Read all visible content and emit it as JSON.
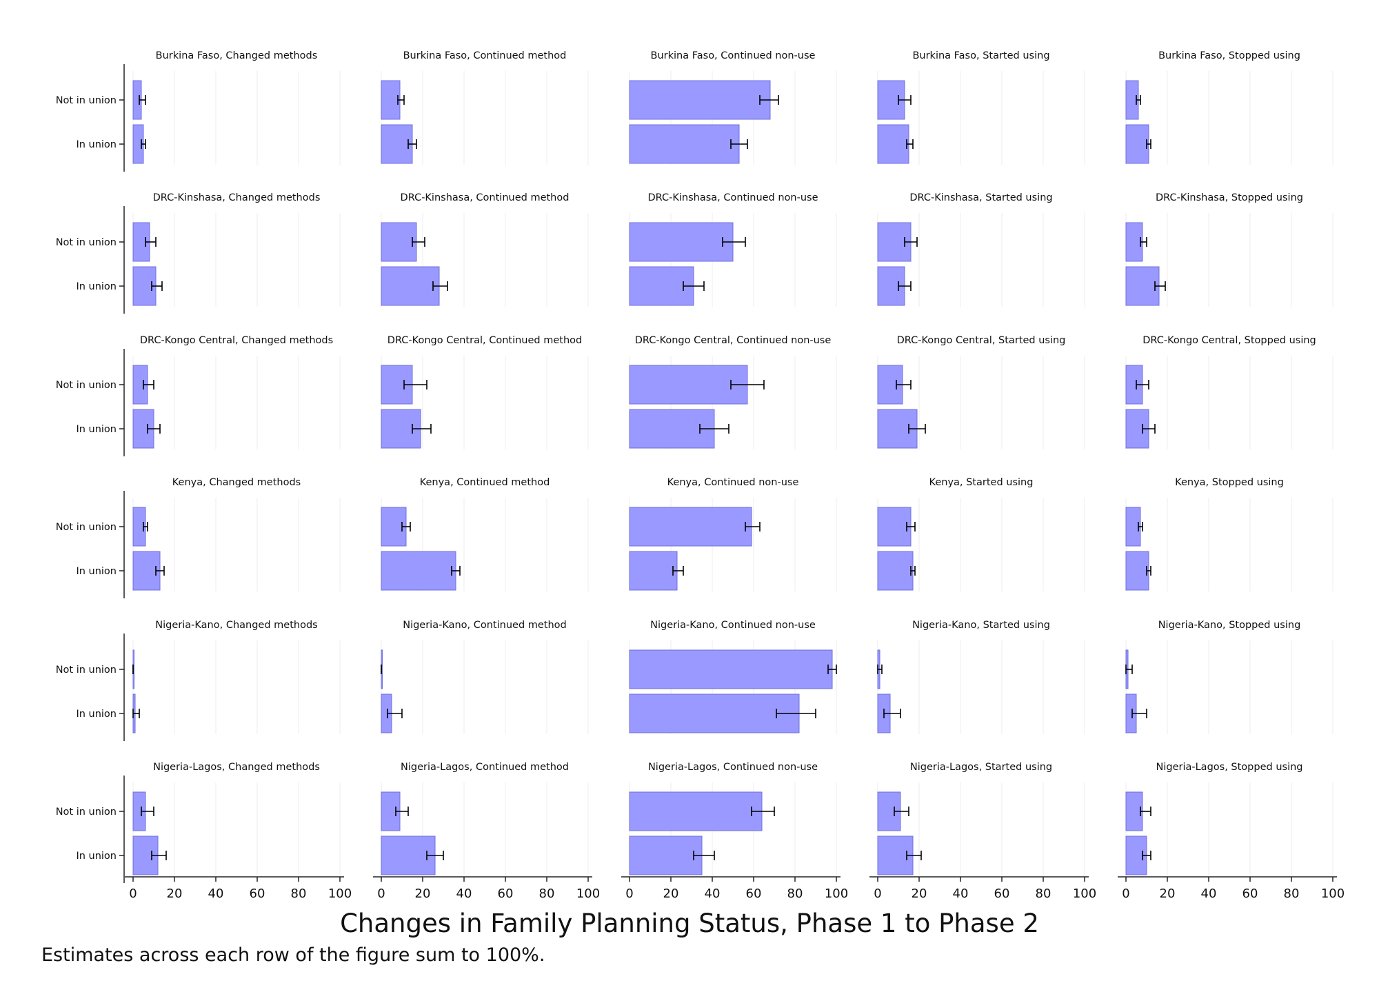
{
  "title": "Changes in Family Planning Status, Phase 1 to Phase 2",
  "note": "Estimates across each row of the figure sum to 100%.",
  "colors": {
    "bar_fill": "#9999ff",
    "bar_stroke": "#6f6fdd",
    "grid": "#eeeeee",
    "axis": "#222222",
    "error_bar": "#000000"
  },
  "chart_data": {
    "type": "bar",
    "orientation": "horizontal",
    "xlim": [
      0,
      100
    ],
    "xticks": [
      0,
      20,
      40,
      60,
      80,
      100
    ],
    "grid": true,
    "categories": [
      "Not in union",
      "In union"
    ],
    "panels": [
      {
        "title": "Burkina Faso, Changed methods",
        "values": [
          4,
          5
        ],
        "ci": [
          [
            3,
            6
          ],
          [
            4,
            6
          ]
        ]
      },
      {
        "title": "Burkina Faso, Continued method",
        "values": [
          9,
          15
        ],
        "ci": [
          [
            8,
            11
          ],
          [
            13,
            17
          ]
        ]
      },
      {
        "title": "Burkina Faso, Continued non-use",
        "values": [
          68,
          53
        ],
        "ci": [
          [
            63,
            72
          ],
          [
            49,
            57
          ]
        ]
      },
      {
        "title": "Burkina Faso, Started using",
        "values": [
          13,
          15
        ],
        "ci": [
          [
            10,
            16
          ],
          [
            14,
            17
          ]
        ]
      },
      {
        "title": "Burkina Faso, Stopped using",
        "values": [
          6,
          11
        ],
        "ci": [
          [
            5,
            7
          ],
          [
            10,
            12
          ]
        ]
      },
      {
        "title": "DRC-Kinshasa, Changed methods",
        "values": [
          8,
          11
        ],
        "ci": [
          [
            6,
            11
          ],
          [
            9,
            14
          ]
        ]
      },
      {
        "title": "DRC-Kinshasa, Continued method",
        "values": [
          17,
          28
        ],
        "ci": [
          [
            15,
            21
          ],
          [
            25,
            32
          ]
        ]
      },
      {
        "title": "DRC-Kinshasa, Continued non-use",
        "values": [
          50,
          31
        ],
        "ci": [
          [
            45,
            56
          ],
          [
            26,
            36
          ]
        ]
      },
      {
        "title": "DRC-Kinshasa, Started using",
        "values": [
          16,
          13
        ],
        "ci": [
          [
            13,
            19
          ],
          [
            10,
            16
          ]
        ]
      },
      {
        "title": "DRC-Kinshasa, Stopped using",
        "values": [
          8,
          16
        ],
        "ci": [
          [
            7,
            10
          ],
          [
            14,
            19
          ]
        ]
      },
      {
        "title": "DRC-Kongo Central, Changed methods",
        "values": [
          7,
          10
        ],
        "ci": [
          [
            5,
            10
          ],
          [
            7,
            13
          ]
        ]
      },
      {
        "title": "DRC-Kongo Central, Continued method",
        "values": [
          15,
          19
        ],
        "ci": [
          [
            11,
            22
          ],
          [
            15,
            24
          ]
        ]
      },
      {
        "title": "DRC-Kongo Central, Continued non-use",
        "values": [
          57,
          41
        ],
        "ci": [
          [
            49,
            65
          ],
          [
            34,
            48
          ]
        ]
      },
      {
        "title": "DRC-Kongo Central, Started using",
        "values": [
          12,
          19
        ],
        "ci": [
          [
            9,
            16
          ],
          [
            15,
            23
          ]
        ]
      },
      {
        "title": "DRC-Kongo Central, Stopped using",
        "values": [
          8,
          11
        ],
        "ci": [
          [
            5,
            11
          ],
          [
            8,
            14
          ]
        ]
      },
      {
        "title": "Kenya, Changed methods",
        "values": [
          6,
          13
        ],
        "ci": [
          [
            5,
            7
          ],
          [
            11,
            15
          ]
        ]
      },
      {
        "title": "Kenya, Continued method",
        "values": [
          12,
          36
        ],
        "ci": [
          [
            10,
            14
          ],
          [
            34,
            38
          ]
        ]
      },
      {
        "title": "Kenya, Continued non-use",
        "values": [
          59,
          23
        ],
        "ci": [
          [
            56,
            63
          ],
          [
            21,
            26
          ]
        ]
      },
      {
        "title": "Kenya, Started using",
        "values": [
          16,
          17
        ],
        "ci": [
          [
            14,
            18
          ],
          [
            16,
            18
          ]
        ]
      },
      {
        "title": "Kenya, Stopped using",
        "values": [
          7,
          11
        ],
        "ci": [
          [
            6,
            8
          ],
          [
            10,
            12
          ]
        ]
      },
      {
        "title": "Nigeria-Kano, Changed methods",
        "values": [
          0,
          1
        ],
        "ci": [
          [
            0,
            0
          ],
          [
            0,
            3
          ]
        ]
      },
      {
        "title": "Nigeria-Kano, Continued method",
        "values": [
          0,
          5
        ],
        "ci": [
          [
            0,
            0
          ],
          [
            3,
            10
          ]
        ]
      },
      {
        "title": "Nigeria-Kano, Continued non-use",
        "values": [
          98,
          82
        ],
        "ci": [
          [
            96,
            100
          ],
          [
            71,
            90
          ]
        ]
      },
      {
        "title": "Nigeria-Kano, Started using",
        "values": [
          1,
          6
        ],
        "ci": [
          [
            0,
            2
          ],
          [
            3,
            11
          ]
        ]
      },
      {
        "title": "Nigeria-Kano, Stopped using",
        "values": [
          1,
          5
        ],
        "ci": [
          [
            0,
            3
          ],
          [
            3,
            10
          ]
        ]
      },
      {
        "title": "Nigeria-Lagos, Changed methods",
        "values": [
          6,
          12
        ],
        "ci": [
          [
            4,
            10
          ],
          [
            9,
            16
          ]
        ]
      },
      {
        "title": "Nigeria-Lagos, Continued method",
        "values": [
          9,
          26
        ],
        "ci": [
          [
            7,
            13
          ],
          [
            22,
            30
          ]
        ]
      },
      {
        "title": "Nigeria-Lagos, Continued non-use",
        "values": [
          64,
          35
        ],
        "ci": [
          [
            59,
            70
          ],
          [
            31,
            41
          ]
        ]
      },
      {
        "title": "Nigeria-Lagos, Started using",
        "values": [
          11,
          17
        ],
        "ci": [
          [
            8,
            15
          ],
          [
            14,
            21
          ]
        ]
      },
      {
        "title": "Nigeria-Lagos, Stopped using",
        "values": [
          8,
          10
        ],
        "ci": [
          [
            7,
            12
          ],
          [
            8,
            12
          ]
        ]
      }
    ]
  }
}
